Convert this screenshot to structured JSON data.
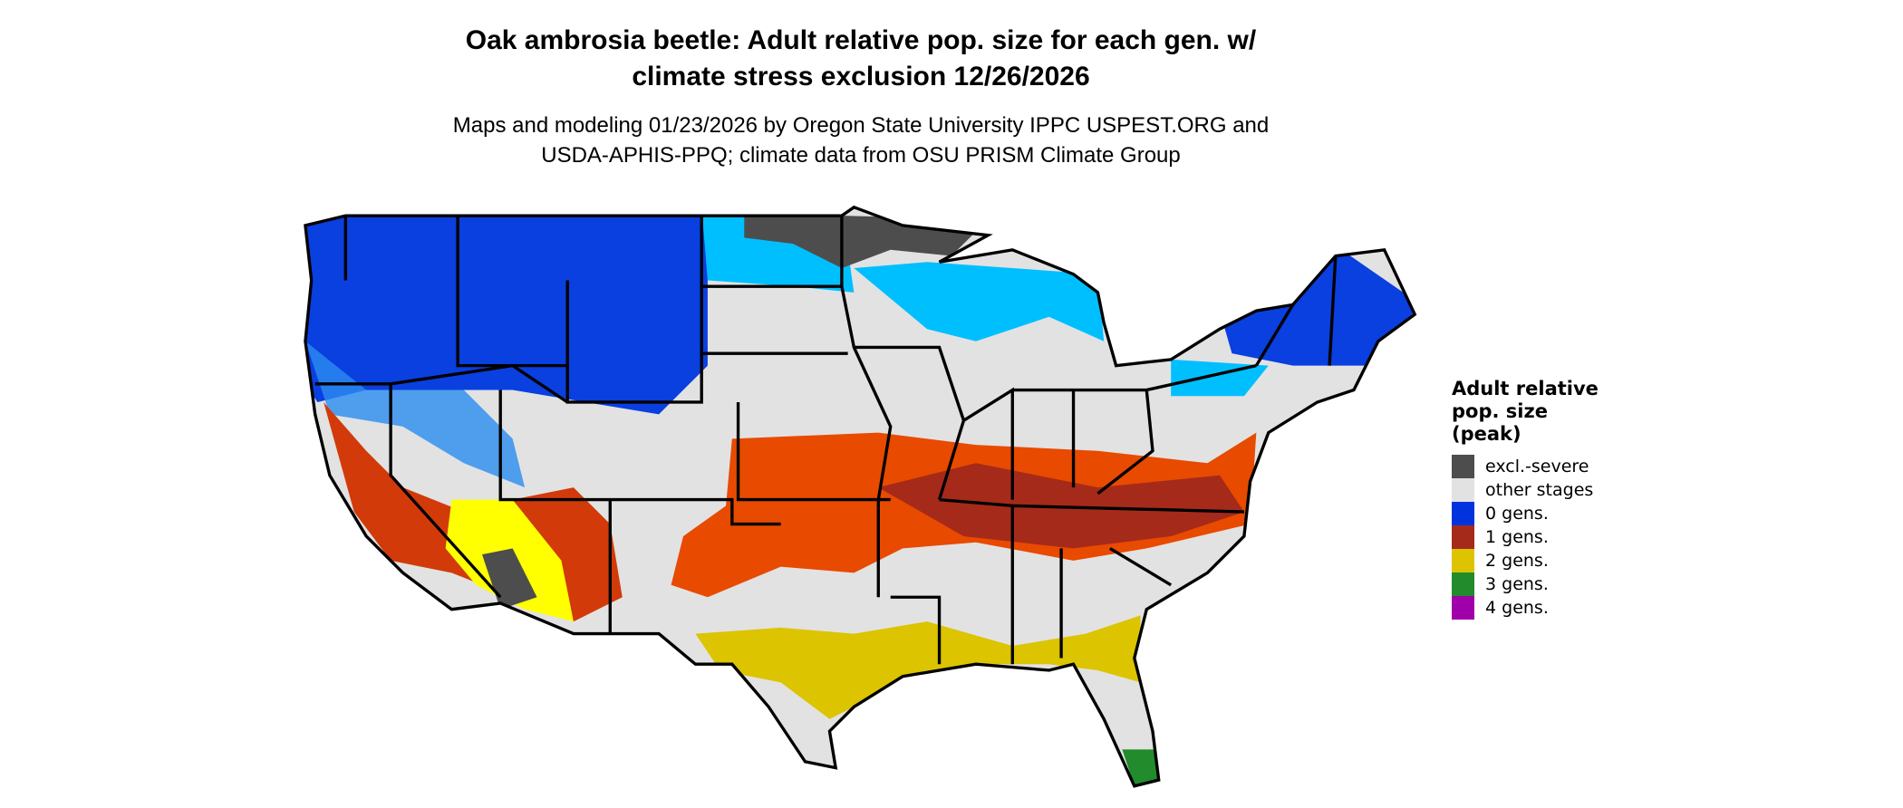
{
  "title": {
    "line1": "Oak ambrosia beetle: Adult relative pop. size for each gen. w/",
    "line2": "climate stress exclusion 12/26/2026"
  },
  "subtitle": {
    "line1": "Maps and modeling 01/23/2026 by Oregon State University IPPC USPEST.ORG and",
    "line2": "USDA-APHIS-PPQ; climate data from OSU PRISM Climate Group"
  },
  "legend": {
    "title_lines": [
      "Adult relative",
      "pop. size",
      "(peak)"
    ],
    "items": [
      {
        "label": "excl.-severe",
        "color": "#4d4d4d"
      },
      {
        "label": "other stages",
        "color": "#e2e2e2"
      },
      {
        "label": "0 gens.",
        "color": "#0033dd"
      },
      {
        "label": "1 gens.",
        "color": "#a52a1a"
      },
      {
        "label": "2 gens.",
        "color": "#dcc400"
      },
      {
        "label": "3 gens.",
        "color": "#228b2b"
      },
      {
        "label": "4 gens.",
        "color": "#a000aa"
      }
    ]
  },
  "map_colors": {
    "light_blue": "#00bfff",
    "orange_red": "#e84a00",
    "bright_yellow": "#ffff00"
  }
}
